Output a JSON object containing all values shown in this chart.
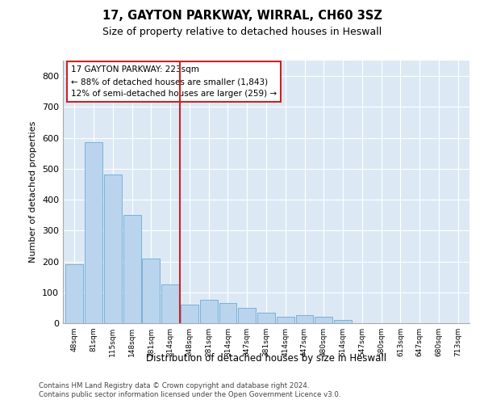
{
  "title1": "17, GAYTON PARKWAY, WIRRAL, CH60 3SZ",
  "title2": "Size of property relative to detached houses in Heswall",
  "xlabel": "Distribution of detached houses by size in Heswall",
  "ylabel": "Number of detached properties",
  "categories": [
    "48sqm",
    "81sqm",
    "115sqm",
    "148sqm",
    "181sqm",
    "214sqm",
    "248sqm",
    "281sqm",
    "314sqm",
    "347sqm",
    "381sqm",
    "414sqm",
    "447sqm",
    "480sqm",
    "514sqm",
    "547sqm",
    "580sqm",
    "613sqm",
    "647sqm",
    "680sqm",
    "713sqm"
  ],
  "values": [
    190,
    585,
    480,
    350,
    210,
    125,
    60,
    75,
    65,
    50,
    35,
    20,
    25,
    20,
    10,
    0,
    0,
    0,
    0,
    0,
    0
  ],
  "bar_color": "#bad4ee",
  "bar_edge_color": "#6aaad4",
  "property_line_x": 5.5,
  "property_line_color": "#cc2222",
  "annotation_lines": [
    "17 GAYTON PARKWAY: 223sqm",
    "← 88% of detached houses are smaller (1,843)",
    "12% of semi-detached houses are larger (259) →"
  ],
  "annotation_box_color": "#cc2222",
  "annotation_box_fill": "#ffffff",
  "ylim": [
    0,
    850
  ],
  "yticks": [
    0,
    100,
    200,
    300,
    400,
    500,
    600,
    700,
    800
  ],
  "fig_bg_color": "#ffffff",
  "plot_bg_color": "#dce9f5",
  "grid_color": "#ffffff",
  "footer1": "Contains HM Land Registry data © Crown copyright and database right 2024.",
  "footer2": "Contains public sector information licensed under the Open Government Licence v3.0."
}
